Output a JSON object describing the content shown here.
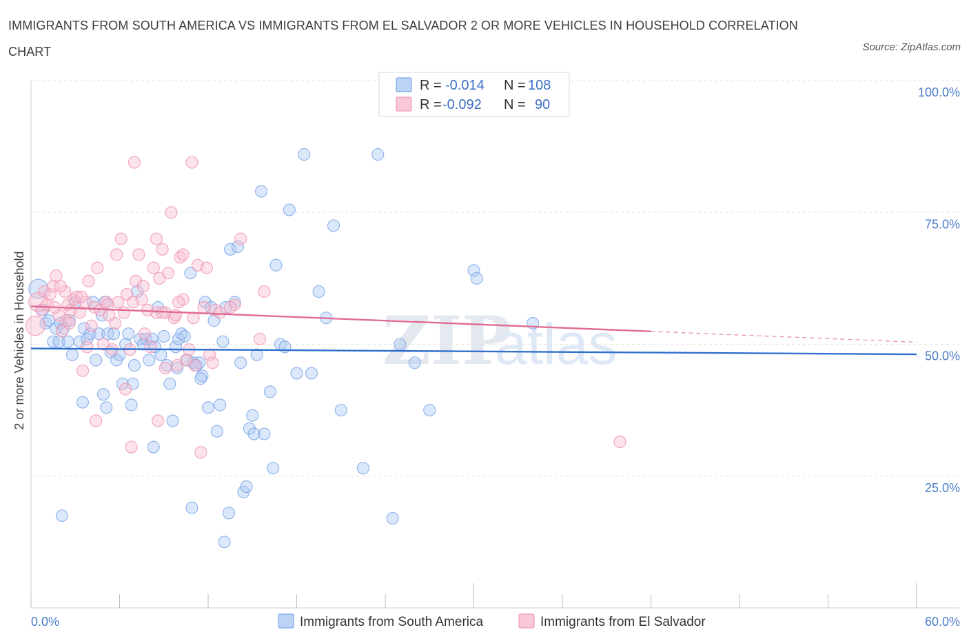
{
  "header": {
    "title": "IMMIGRANTS FROM SOUTH AMERICA VS IMMIGRANTS FROM EL SALVADOR 2 OR MORE VEHICLES IN HOUSEHOLD CORRELATION CHART",
    "source": "Source: ZipAtlas.com"
  },
  "watermark": {
    "zip": "ZIP",
    "atlas": "atlas"
  },
  "colors": {
    "blue": "#7aa6e6",
    "blue_line": "#2f6fcd",
    "pink": "#f09ab6",
    "pink_line": "#e06b93",
    "axis_text": "#4a7cc9"
  },
  "legend": {
    "rows": [
      {
        "r_label": "R =",
        "r_value": "-0.014",
        "n_label": "N =",
        "n_value": "108"
      },
      {
        "r_label": "R =",
        "r_value": "-0.092",
        "n_label": "N =",
        "n_value": "90"
      }
    ]
  },
  "chart_data": {
    "type": "scatter",
    "title": "IMMIGRANTS FROM SOUTH AMERICA VS IMMIGRANTS FROM EL SALVADOR 2 OR MORE VEHICLES IN HOUSEHOLD CORRELATION CHART",
    "xlabel": "",
    "ylabel": "2 or more Vehicles in Household",
    "xlim": [
      0,
      60
    ],
    "ylim": [
      0,
      100
    ],
    "x_tick_labels": [
      "0.0%",
      "60.0%"
    ],
    "y_tick_labels": [
      "100.0%",
      "75.0%",
      "50.0%",
      "25.0%"
    ],
    "y_ticks": [
      100,
      75,
      50,
      25
    ],
    "legend_position": "top-center",
    "series": [
      {
        "name": "Immigrants from South America",
        "color": "#7aa6e6",
        "trend": {
          "x": [
            0,
            60
          ],
          "y": [
            49.2,
            48.1
          ]
        },
        "points": [
          [
            0.5,
            60.5
          ],
          [
            0.8,
            56.5
          ],
          [
            1.0,
            54.0
          ],
          [
            1.2,
            54.5
          ],
          [
            1.5,
            50.5
          ],
          [
            1.7,
            53.0
          ],
          [
            1.9,
            50.5
          ],
          [
            2.0,
            54.0
          ],
          [
            2.2,
            53.0
          ],
          [
            2.5,
            50.5
          ],
          [
            2.6,
            54.5
          ],
          [
            2.8,
            48.0
          ],
          [
            3.0,
            58.0
          ],
          [
            3.3,
            50.5
          ],
          [
            3.5,
            39.0
          ],
          [
            3.6,
            53.0
          ],
          [
            3.8,
            51.0
          ],
          [
            4.0,
            52.0
          ],
          [
            4.2,
            58.0
          ],
          [
            4.4,
            47.0
          ],
          [
            4.6,
            52.0
          ],
          [
            4.8,
            55.5
          ],
          [
            5.0,
            58.0
          ],
          [
            5.2,
            52.0
          ],
          [
            5.4,
            48.5
          ],
          [
            5.6,
            52.0
          ],
          [
            5.8,
            47.0
          ],
          [
            6.0,
            48.0
          ],
          [
            6.2,
            42.5
          ],
          [
            6.4,
            50.0
          ],
          [
            6.6,
            52.0
          ],
          [
            6.8,
            38.5
          ],
          [
            6.9,
            42.5
          ],
          [
            7.0,
            46.0
          ],
          [
            7.2,
            60.0
          ],
          [
            7.4,
            51.0
          ],
          [
            7.6,
            50.0
          ],
          [
            7.8,
            51.0
          ],
          [
            8.0,
            47.0
          ],
          [
            8.2,
            51.0
          ],
          [
            8.4,
            49.5
          ],
          [
            8.6,
            57.0
          ],
          [
            8.8,
            48.0
          ],
          [
            9.0,
            51.5
          ],
          [
            9.2,
            46.0
          ],
          [
            9.4,
            42.5
          ],
          [
            9.6,
            35.5
          ],
          [
            9.8,
            49.5
          ],
          [
            10.0,
            51.0
          ],
          [
            10.2,
            52.0
          ],
          [
            10.4,
            51.5
          ],
          [
            10.6,
            47.0
          ],
          [
            10.8,
            63.5
          ],
          [
            11.0,
            46.5
          ],
          [
            11.2,
            46.0
          ],
          [
            11.4,
            46.5
          ],
          [
            11.6,
            44.0
          ],
          [
            11.8,
            58.0
          ],
          [
            12.0,
            38.0
          ],
          [
            12.2,
            57.0
          ],
          [
            12.4,
            54.5
          ],
          [
            12.6,
            33.5
          ],
          [
            12.8,
            38.5
          ],
          [
            13.0,
            50.5
          ],
          [
            13.2,
            57.0
          ],
          [
            13.5,
            68.0
          ],
          [
            13.8,
            58.0
          ],
          [
            14.0,
            68.5
          ],
          [
            14.2,
            46.5
          ],
          [
            14.4,
            22.0
          ],
          [
            14.6,
            23.0
          ],
          [
            14.8,
            34.0
          ],
          [
            15.0,
            36.5
          ],
          [
            15.3,
            48.0
          ],
          [
            15.6,
            79.0
          ],
          [
            15.8,
            33.0
          ],
          [
            16.2,
            41.0
          ],
          [
            16.4,
            26.5
          ],
          [
            16.6,
            65.0
          ],
          [
            16.9,
            50.0
          ],
          [
            17.2,
            49.5
          ],
          [
            17.5,
            75.5
          ],
          [
            18.0,
            44.5
          ],
          [
            18.5,
            86.0
          ],
          [
            19.0,
            44.5
          ],
          [
            19.5,
            60.0
          ],
          [
            20.0,
            55.0
          ],
          [
            20.5,
            72.5
          ],
          [
            21.0,
            37.5
          ],
          [
            22.5,
            26.5
          ],
          [
            23.5,
            86.0
          ],
          [
            24.5,
            17.0
          ],
          [
            25.0,
            50.0
          ],
          [
            26.0,
            46.5
          ],
          [
            27.0,
            37.5
          ],
          [
            2.1,
            17.5
          ],
          [
            4.9,
            40.5
          ],
          [
            8.3,
            30.5
          ],
          [
            10.9,
            19.0
          ],
          [
            13.4,
            18.0
          ],
          [
            13.1,
            12.5
          ],
          [
            5.1,
            38.0
          ],
          [
            30.0,
            64.0
          ],
          [
            30.2,
            62.5
          ],
          [
            34.0,
            54.0
          ],
          [
            9.9,
            45.5
          ],
          [
            11.5,
            43.5
          ],
          [
            15.1,
            33.0
          ]
        ]
      },
      {
        "name": "Immigrants from El Salvador",
        "color": "#f09ab6",
        "trend": {
          "x": [
            0,
            60
          ],
          "y": [
            57.2,
            50.4
          ]
        },
        "trend_solid_to_x": 42,
        "points": [
          [
            0.3,
            53.5
          ],
          [
            0.5,
            58.0
          ],
          [
            0.7,
            56.5
          ],
          [
            0.9,
            60.0
          ],
          [
            1.1,
            57.5
          ],
          [
            1.3,
            59.5
          ],
          [
            1.5,
            61.0
          ],
          [
            1.7,
            63.0
          ],
          [
            1.9,
            55.5
          ],
          [
            2.1,
            52.5
          ],
          [
            2.3,
            60.0
          ],
          [
            2.5,
            57.5
          ],
          [
            2.7,
            56.5
          ],
          [
            2.9,
            58.5
          ],
          [
            3.1,
            59.0
          ],
          [
            3.3,
            56.0
          ],
          [
            3.5,
            45.0
          ],
          [
            3.7,
            58.0
          ],
          [
            3.9,
            62.0
          ],
          [
            4.1,
            53.5
          ],
          [
            4.3,
            57.0
          ],
          [
            4.5,
            64.5
          ],
          [
            4.7,
            56.5
          ],
          [
            4.9,
            50.0
          ],
          [
            5.1,
            58.0
          ],
          [
            5.3,
            55.5
          ],
          [
            5.5,
            49.0
          ],
          [
            5.7,
            54.0
          ],
          [
            5.9,
            58.0
          ],
          [
            6.1,
            70.0
          ],
          [
            6.3,
            56.0
          ],
          [
            6.5,
            59.5
          ],
          [
            6.7,
            49.0
          ],
          [
            6.9,
            58.0
          ],
          [
            7.1,
            62.0
          ],
          [
            7.3,
            67.0
          ],
          [
            7.5,
            58.5
          ],
          [
            7.7,
            52.0
          ],
          [
            7.9,
            56.5
          ],
          [
            8.1,
            49.5
          ],
          [
            8.3,
            64.5
          ],
          [
            8.5,
            56.0
          ],
          [
            8.7,
            62.5
          ],
          [
            8.9,
            68.0
          ],
          [
            9.1,
            56.0
          ],
          [
            9.3,
            63.5
          ],
          [
            9.5,
            75.0
          ],
          [
            9.7,
            55.0
          ],
          [
            9.9,
            46.0
          ],
          [
            10.1,
            66.5
          ],
          [
            10.3,
            58.5
          ],
          [
            10.5,
            47.0
          ],
          [
            10.7,
            49.0
          ],
          [
            10.9,
            84.5
          ],
          [
            11.1,
            46.0
          ],
          [
            11.3,
            65.0
          ],
          [
            11.5,
            29.5
          ],
          [
            11.7,
            57.0
          ],
          [
            11.9,
            64.5
          ],
          [
            12.1,
            48.0
          ],
          [
            12.3,
            46.5
          ],
          [
            12.5,
            56.5
          ],
          [
            13.8,
            57.5
          ],
          [
            14.2,
            70.0
          ],
          [
            15.5,
            51.0
          ],
          [
            15.8,
            60.0
          ],
          [
            7.0,
            84.5
          ],
          [
            8.5,
            70.0
          ],
          [
            10.3,
            67.0
          ],
          [
            5.8,
            67.0
          ],
          [
            9.8,
            55.5
          ],
          [
            2.4,
            54.5
          ],
          [
            3.8,
            49.5
          ],
          [
            4.4,
            35.5
          ],
          [
            6.8,
            30.5
          ],
          [
            8.6,
            35.5
          ],
          [
            9.1,
            45.5
          ],
          [
            39.9,
            31.5
          ],
          [
            1.6,
            57.0
          ],
          [
            2.0,
            61.0
          ],
          [
            2.6,
            54.0
          ],
          [
            3.4,
            59.0
          ],
          [
            5.2,
            57.5
          ],
          [
            6.4,
            41.5
          ],
          [
            7.6,
            61.0
          ],
          [
            8.9,
            56.0
          ],
          [
            10.0,
            58.0
          ],
          [
            11.0,
            55.0
          ],
          [
            12.8,
            56.0
          ],
          [
            13.5,
            57.0
          ]
        ]
      }
    ]
  },
  "bottom_legend": {
    "items": [
      "Immigrants from South America",
      "Immigrants from El Salvador"
    ]
  }
}
